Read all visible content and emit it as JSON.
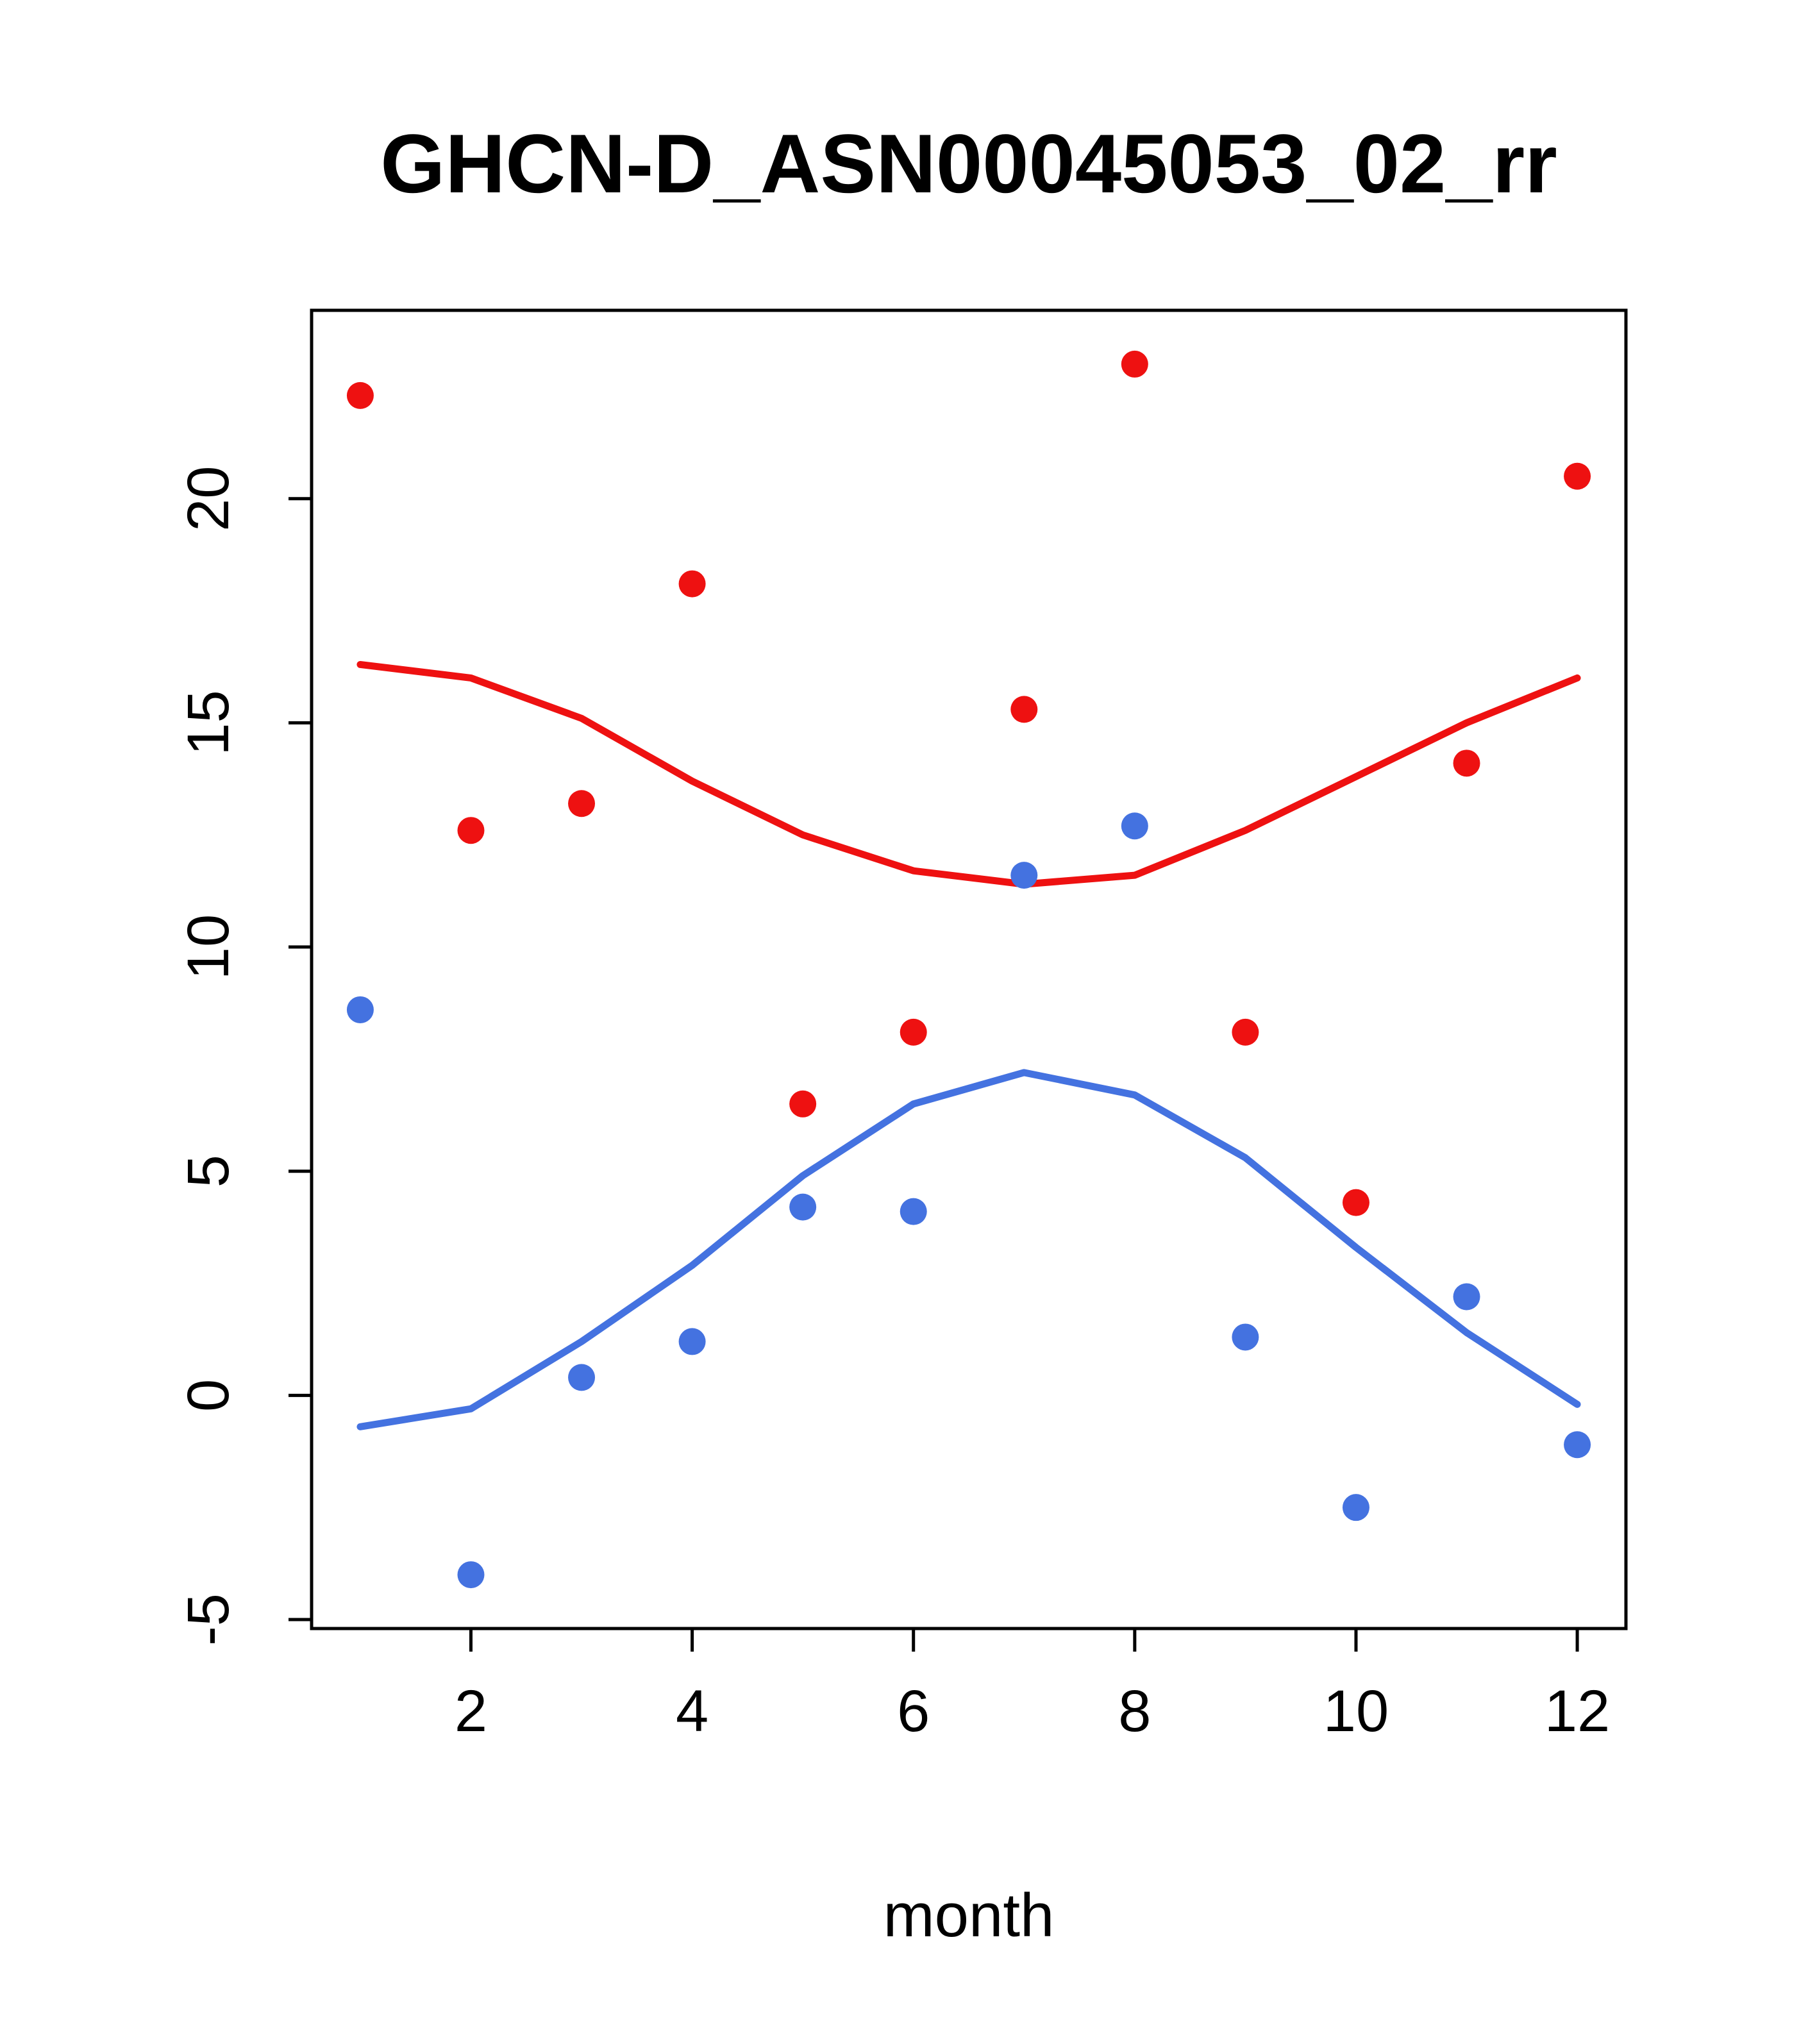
{
  "title": "GHCN-D_ASN00045053_02_rr",
  "colors": {
    "red": "#ee1111",
    "blue": "#4472e0",
    "axis": "#000000",
    "background": "#ffffff"
  },
  "chart_data": {
    "type": "scatter",
    "title": "GHCN-D_ASN00045053_02_rr",
    "xlabel": "month",
    "ylabel": "",
    "x": [
      1,
      2,
      3,
      4,
      5,
      6,
      7,
      8,
      9,
      10,
      11,
      12
    ],
    "xticks": [
      2,
      4,
      6,
      8,
      10,
      12
    ],
    "yticks": [
      -5,
      0,
      5,
      10,
      15,
      20
    ],
    "xlim": [
      0.56,
      12.44
    ],
    "ylim": [
      -5.2,
      24.2
    ],
    "grid": false,
    "legend": "none",
    "series": [
      {
        "name": "red-line",
        "kind": "line",
        "color": "#ee1111",
        "values": [
          16.3,
          16.0,
          15.1,
          13.7,
          12.5,
          11.7,
          11.4,
          11.6,
          12.6,
          13.8,
          15.0,
          16.0
        ]
      },
      {
        "name": "blue-line",
        "kind": "line",
        "color": "#4472e0",
        "values": [
          -0.7,
          -0.3,
          1.2,
          2.9,
          4.9,
          6.5,
          7.2,
          6.7,
          5.3,
          3.3,
          1.4,
          -0.2
        ]
      },
      {
        "name": "red-points",
        "kind": "points",
        "color": "#ee1111",
        "values": [
          22.3,
          12.6,
          13.2,
          18.1,
          6.5,
          8.1,
          15.3,
          23.0,
          8.1,
          4.3,
          14.1,
          20.5
        ]
      },
      {
        "name": "blue-points",
        "kind": "points",
        "color": "#4472e0",
        "values": [
          8.6,
          -4.0,
          0.4,
          1.2,
          4.2,
          4.1,
          11.6,
          12.7,
          1.3,
          -2.5,
          2.2,
          -1.1
        ]
      }
    ]
  }
}
